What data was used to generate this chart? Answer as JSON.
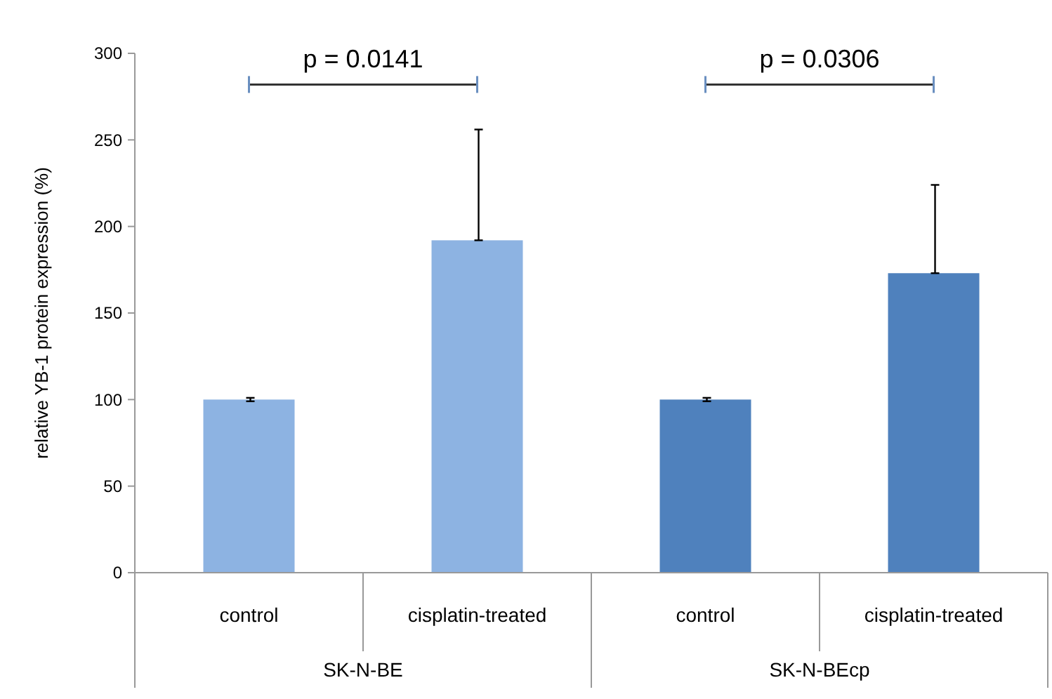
{
  "chart_data": {
    "type": "bar",
    "ylabel": "relative YB-1 protein expression (%)",
    "categories": [
      "control",
      "cisplatin-treated",
      "control",
      "cisplatin-treated"
    ],
    "values": [
      100,
      192,
      100,
      173
    ],
    "colors": [
      "#8db3e2",
      "#8db3e2",
      "#4f81bd",
      "#4f81bd"
    ],
    "errors": [
      [
        99,
        101
      ],
      [
        192,
        256
      ],
      [
        99,
        101
      ],
      [
        173,
        224
      ]
    ],
    "ylim": [
      0,
      300
    ],
    "yticks": [
      0,
      50,
      100,
      150,
      200,
      250,
      300
    ],
    "annotations": [
      "p = 0.0141",
      "p = 0.0306",
      "SK-N-BE",
      "SK-N-BEcp"
    ]
  }
}
